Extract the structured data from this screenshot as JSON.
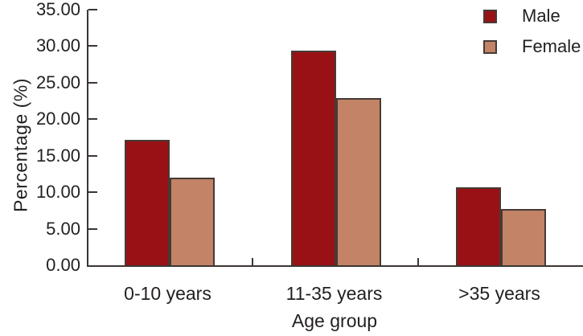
{
  "chart_data": {
    "type": "bar",
    "title": "",
    "xlabel": "Age group",
    "ylabel": "Percentage (%)",
    "categories": [
      "0-10 years",
      "11-35 years",
      ">35 years"
    ],
    "series": [
      {
        "name": "Male",
        "color": "#9a1115",
        "values": [
          17.2,
          29.4,
          10.7
        ]
      },
      {
        "name": "Female",
        "color": "#c28367",
        "values": [
          12.0,
          22.9,
          7.7
        ]
      }
    ],
    "ylim": [
      0,
      35
    ],
    "ytick_step": 5,
    "ytick_decimals": 2,
    "grid": false,
    "legend_position": "top-right",
    "legend_entries": [
      "Male",
      "Female"
    ]
  },
  "colors": {
    "male_bar": "#9a1115",
    "female_bar": "#c28367",
    "bar_border": "#463a35",
    "axis": "#3b3634",
    "text": "#231f20",
    "background": "#ffffff"
  }
}
